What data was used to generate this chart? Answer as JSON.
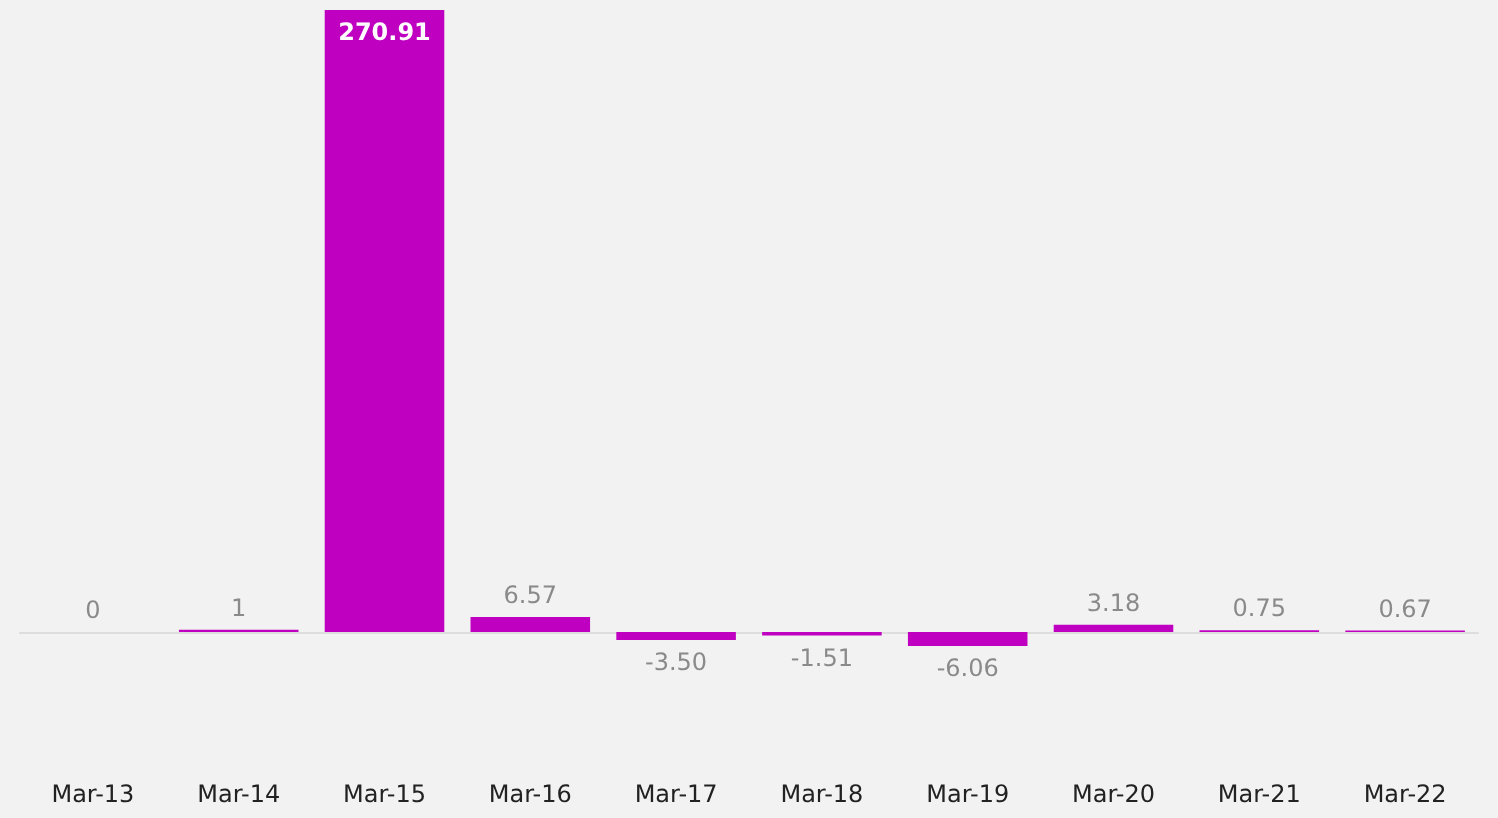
{
  "chart_data": {
    "type": "bar",
    "categories": [
      "Mar-13",
      "Mar-14",
      "Mar-15",
      "Mar-16",
      "Mar-17",
      "Mar-18",
      "Mar-19",
      "Mar-20",
      "Mar-21",
      "Mar-22"
    ],
    "values": [
      0,
      1,
      270.91,
      6.57,
      -3.5,
      -1.51,
      -6.06,
      3.18,
      0.75,
      0.67
    ],
    "value_labels": [
      "0",
      "1",
      "270.91",
      "6.57",
      "-3.50",
      "-1.51",
      "-6.06",
      "3.18",
      "0.75",
      "0.67"
    ],
    "color": "#c000c0",
    "tick_labels": "x"
  }
}
